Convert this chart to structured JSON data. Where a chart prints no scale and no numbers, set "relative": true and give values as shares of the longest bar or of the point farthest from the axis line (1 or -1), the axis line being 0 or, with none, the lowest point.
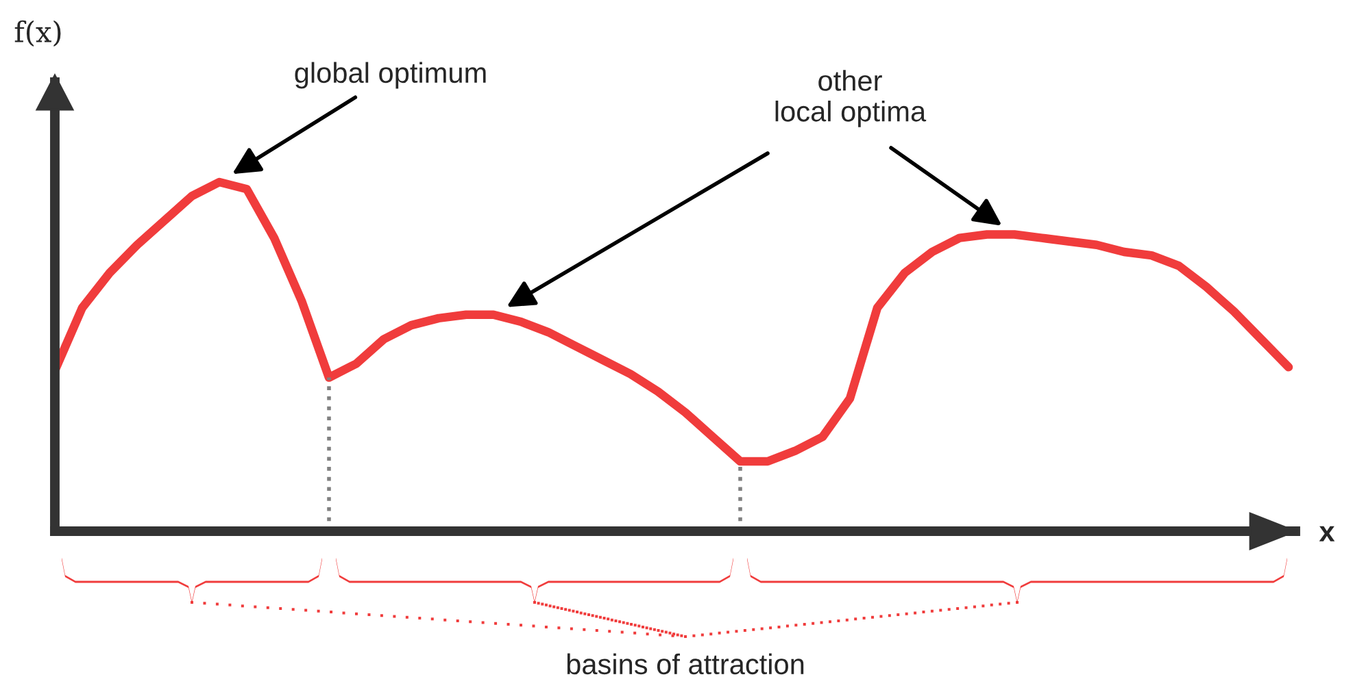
{
  "chart_data": {
    "type": "line",
    "relative": true,
    "xlabel": "x",
    "ylabel": "f(x)",
    "categories": [
      null,
      null,
      null,
      null,
      null,
      null,
      null,
      null,
      null,
      null,
      null,
      null,
      null,
      null,
      null,
      null,
      null,
      null,
      null,
      null,
      null,
      null,
      null,
      null,
      null,
      null,
      null,
      null,
      null,
      null,
      null,
      null,
      null,
      null,
      null,
      null,
      null,
      null,
      null,
      null,
      null,
      null,
      null,
      null,
      null,
      null
    ],
    "series": [
      {
        "color": "#f03c3c",
        "values": [
          0.46,
          0.64,
          0.74,
          0.82,
          0.89,
          0.96,
          1,
          0.98,
          0.84,
          0.66,
          0.44,
          0.48,
          0.55,
          0.59,
          0.61,
          0.62,
          0.62,
          0.6,
          0.57,
          0.53,
          0.49,
          0.45,
          0.4,
          0.34,
          0.27,
          0.2,
          0.2,
          0.23,
          0.27,
          0.38,
          0.64,
          0.74,
          0.8,
          0.84,
          0.85,
          0.85,
          0.84,
          0.83,
          0.82,
          0.8,
          0.79,
          0.76,
          0.7,
          0.63,
          0.55,
          0.47
        ]
      }
    ],
    "annotations": [
      "global optimum",
      "other\nlocal optima",
      "basins of attraction"
    ]
  }
}
